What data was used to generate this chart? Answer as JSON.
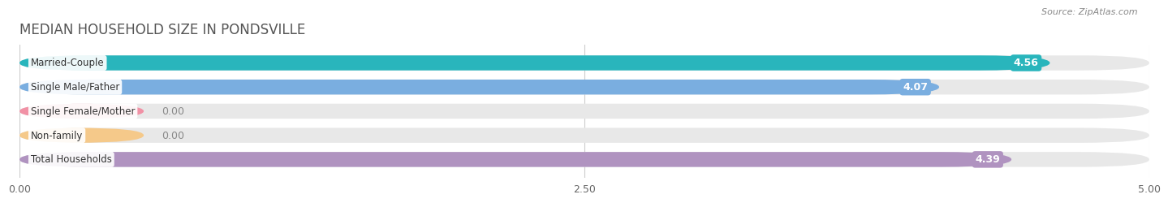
{
  "title": "MEDIAN HOUSEHOLD SIZE IN PONDSVILLE",
  "source": "Source: ZipAtlas.com",
  "categories": [
    "Married-Couple",
    "Single Male/Father",
    "Single Female/Mother",
    "Non-family",
    "Total Households"
  ],
  "values": [
    4.56,
    4.07,
    0.0,
    0.0,
    4.39
  ],
  "bar_colors": [
    "#29b5bc",
    "#7aaee0",
    "#f191a5",
    "#f5c98a",
    "#b093c0"
  ],
  "track_color": "#e8e8e8",
  "xlim": [
    0,
    5.0
  ],
  "xticks": [
    0.0,
    2.5,
    5.0
  ],
  "xtick_labels": [
    "0.00",
    "2.50",
    "5.00"
  ],
  "label_color": "#666666",
  "value_color_inside": "#ffffff",
  "value_color_outside": "#888888",
  "title_color": "#555555",
  "title_fontsize": 12,
  "bar_height": 0.62,
  "background_color": "#ffffff",
  "zero_bar_width": 0.55
}
